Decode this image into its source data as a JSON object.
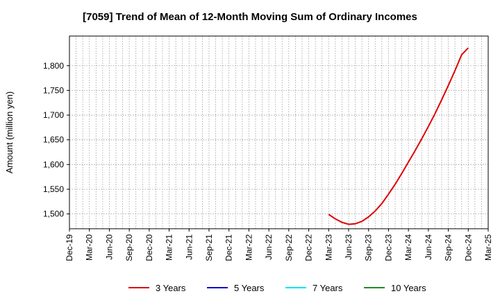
{
  "chart_data": {
    "type": "line",
    "title": "[7059]  Trend of Mean of 12-Month Moving Sum of Ordinary Incomes",
    "xlabel": "",
    "ylabel": "Amount (million yen)",
    "x_tick_labels": [
      "Dec-19",
      "Mar-20",
      "Jun-20",
      "Sep-20",
      "Dec-20",
      "Mar-21",
      "Jun-21",
      "Sep-21",
      "Dec-21",
      "Mar-22",
      "Jun-22",
      "Sep-22",
      "Dec-22",
      "Mar-23",
      "Jun-23",
      "Sep-23",
      "Dec-23",
      "Mar-24",
      "Jun-24",
      "Sep-24",
      "Dec-24",
      "Mar-25"
    ],
    "y_ticks": [
      1500,
      1550,
      1600,
      1650,
      1700,
      1750,
      1800
    ],
    "y_tick_labels": [
      "1,500",
      "1,550",
      "1,600",
      "1,650",
      "1,700",
      "1,750",
      "1,800"
    ],
    "ylim": [
      1470,
      1860
    ],
    "grid": true,
    "legend_position": "bottom",
    "series": [
      {
        "name": "3 Years",
        "color": "#e00000",
        "x": [
          "Mar-23",
          "Apr-23",
          "May-23",
          "Jun-23",
          "Jul-23",
          "Aug-23",
          "Sep-23",
          "Oct-23",
          "Nov-23",
          "Dec-23",
          "Jan-24",
          "Feb-24",
          "Mar-24",
          "Apr-24",
          "May-24",
          "Jun-24",
          "Jul-24",
          "Aug-24",
          "Sep-24",
          "Oct-24",
          "Nov-24",
          "Dec-24"
        ],
        "values": [
          1499,
          1490,
          1483,
          1479,
          1480,
          1485,
          1494,
          1506,
          1521,
          1540,
          1560,
          1582,
          1605,
          1628,
          1652,
          1677,
          1703,
          1731,
          1760,
          1790,
          1822,
          1836
        ]
      },
      {
        "name": "5 Years",
        "color": "#0000cc",
        "x": [],
        "values": []
      },
      {
        "name": "7 Years",
        "color": "#00e5ee",
        "x": [],
        "values": []
      },
      {
        "name": "10 Years",
        "color": "#228b22",
        "x": [],
        "values": []
      }
    ]
  }
}
